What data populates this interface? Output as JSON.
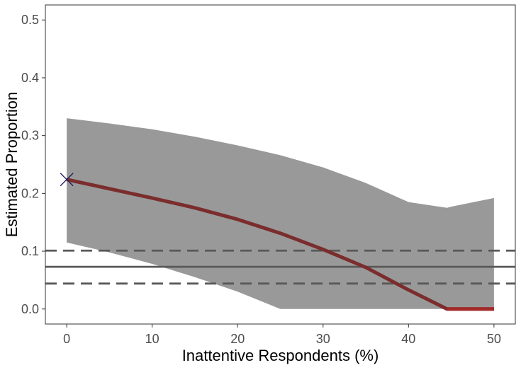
{
  "chart_data": {
    "type": "line",
    "title": "",
    "xlabel": "Inattentive Respondents (%)",
    "ylabel": "Estimated Proportion",
    "xlim": [
      -2.5,
      52.5
    ],
    "ylim": [
      -0.026,
      0.526
    ],
    "x_ticks": [
      0,
      10,
      20,
      30,
      40,
      50
    ],
    "x_tick_labels": [
      "0",
      "10",
      "20",
      "30",
      "40",
      "50"
    ],
    "y_ticks": [
      0.0,
      0.1,
      0.2,
      0.3,
      0.4,
      0.5
    ],
    "y_tick_labels": [
      "0.0",
      "0.1",
      "0.2",
      "0.3",
      "0.4",
      "0.5"
    ],
    "grid": false,
    "series": [
      {
        "role": "estimate",
        "x": [
          0,
          5,
          10,
          15,
          20,
          25,
          30,
          35,
          40,
          44.5,
          45,
          50
        ],
        "y": [
          0.224,
          0.208,
          0.192,
          0.175,
          0.155,
          0.131,
          0.103,
          0.072,
          0.033,
          0.0,
          0.0,
          0.0
        ]
      }
    ],
    "confidence_band": {
      "x": [
        0,
        5,
        10,
        15,
        20,
        25,
        30,
        35,
        40,
        44.5,
        45,
        50
      ],
      "lower": [
        0.115,
        0.098,
        0.078,
        0.055,
        0.03,
        0.0,
        0.0,
        0.0,
        0.0,
        0.0,
        0.0,
        0.0
      ],
      "upper": [
        0.33,
        0.321,
        0.311,
        0.298,
        0.283,
        0.266,
        0.245,
        0.218,
        0.185,
        0.175,
        0.177,
        0.192
      ]
    },
    "reference_lines": [
      {
        "style": "solid",
        "y": 0.073
      },
      {
        "style": "dashed",
        "y": 0.101
      },
      {
        "style": "dashed",
        "y": 0.044
      }
    ],
    "marker": {
      "shape": "x",
      "x": 0,
      "y": 0.224
    },
    "colors": {
      "band": "#999999",
      "estimate_line": "#7b2d2d",
      "estimate_line_zero": "#a52a2a",
      "reference_lines": "#595959",
      "marker": "#1a1a5e",
      "panel_border": "#333333"
    }
  }
}
